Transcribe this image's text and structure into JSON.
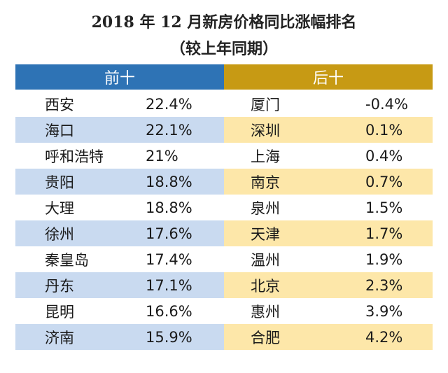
{
  "title": "2018 年 12 月新房价格同比涨幅排名",
  "subtitle": "（较上年同期）",
  "headers": {
    "top": "前十",
    "bottom": "后十"
  },
  "rows": [
    {
      "city_left": "西安",
      "value_left": "22.4%",
      "city_right": "厦门",
      "value_right": "-0.4%"
    },
    {
      "city_left": "海口",
      "value_left": "22.1%",
      "city_right": "深圳",
      "value_right": "0.1%"
    },
    {
      "city_left": "呼和浩特",
      "value_left": "21%",
      "city_right": "上海",
      "value_right": "0.4%"
    },
    {
      "city_left": "贵阳",
      "value_left": "18.8%",
      "city_right": "南京",
      "value_right": "0.7%"
    },
    {
      "city_left": "大理",
      "value_left": "18.8%",
      "city_right": "泉州",
      "value_right": "1.5%"
    },
    {
      "city_left": "徐州",
      "value_left": "17.6%",
      "city_right": "天津",
      "value_right": "1.7%"
    },
    {
      "city_left": "秦皇岛",
      "value_left": "17.4%",
      "city_right": "温州",
      "value_right": "1.9%"
    },
    {
      "city_left": "丹东",
      "value_left": "17.1%",
      "city_right": "北京",
      "value_right": "2.3%"
    },
    {
      "city_left": "昆明",
      "value_left": "16.6%",
      "city_right": "惠州",
      "value_right": "3.9%"
    },
    {
      "city_left": "济南",
      "value_left": "15.9%",
      "city_right": "合肥",
      "value_right": "4.2%"
    }
  ],
  "colors": {
    "header_left": "#2e73b5",
    "header_right": "#c79a14",
    "stripe_left": "#c9daf0",
    "stripe_right": "#fde7a9"
  }
}
